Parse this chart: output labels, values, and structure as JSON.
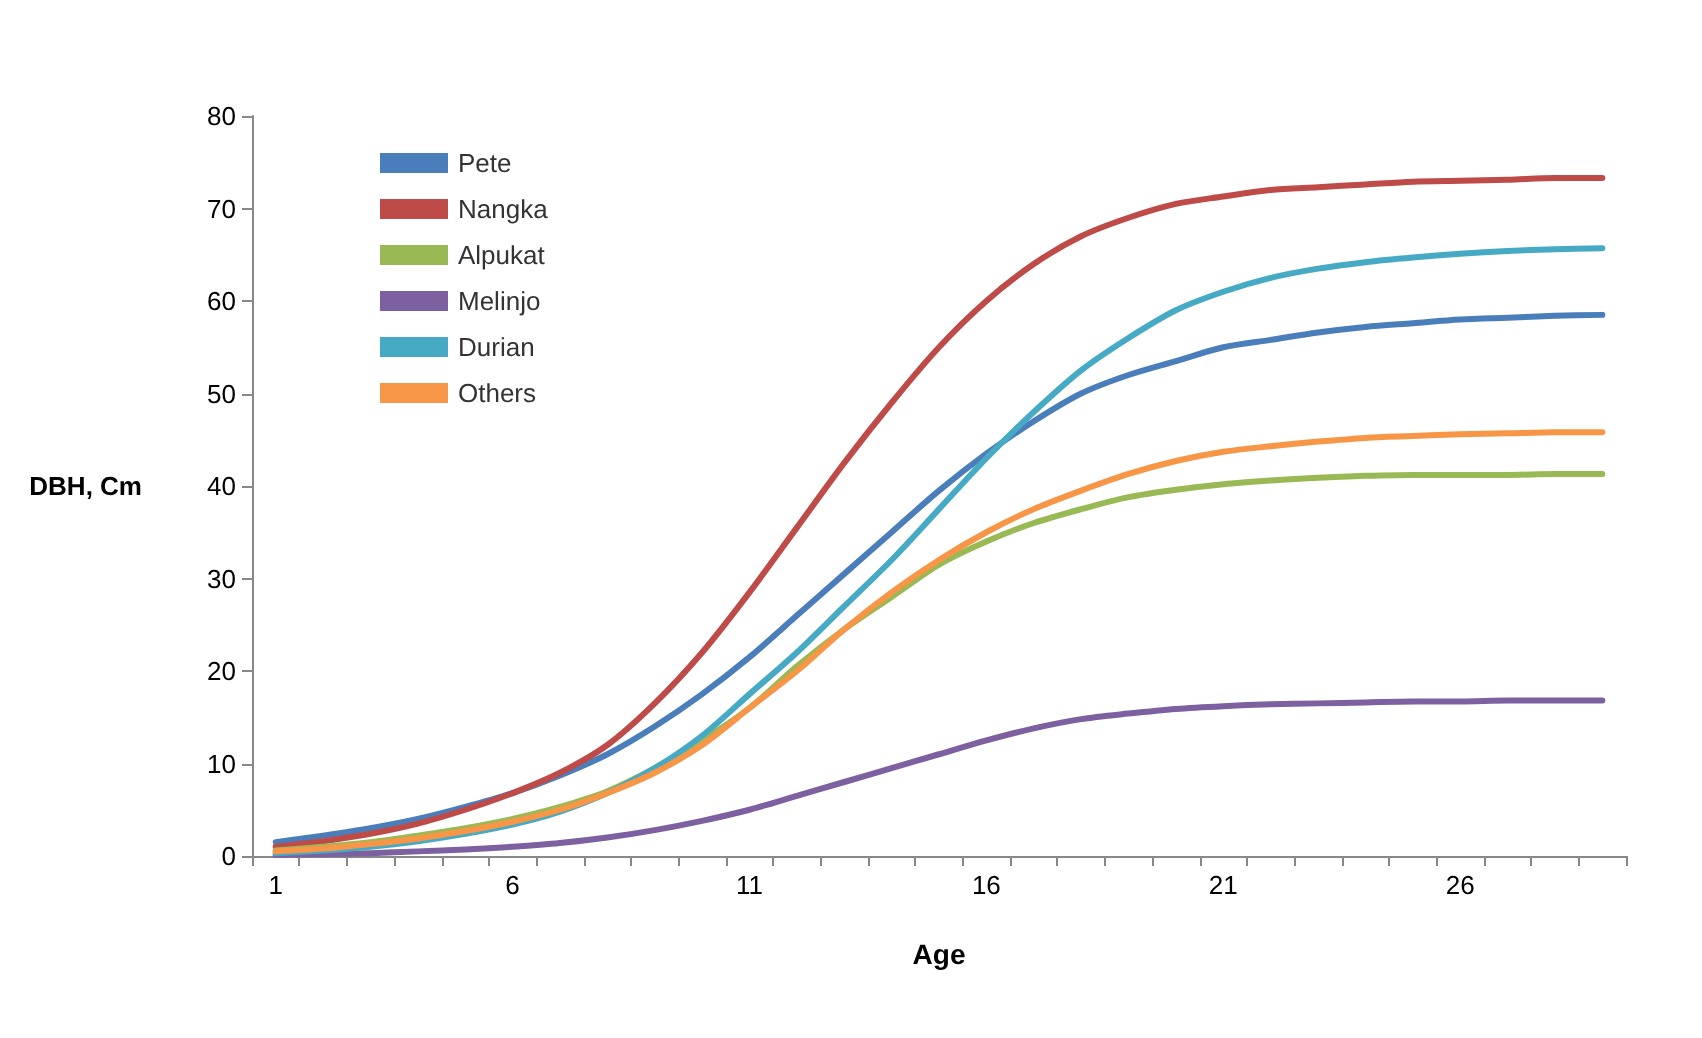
{
  "chart_data": {
    "type": "line",
    "xlabel": "Age",
    "ylabel": "DBH, Cm",
    "categories": [
      "1",
      null,
      null,
      null,
      null,
      "6",
      null,
      null,
      null,
      null,
      "11",
      null,
      null,
      null,
      null,
      "16",
      null,
      null,
      null,
      null,
      "21",
      null,
      null,
      null,
      null,
      "26",
      null,
      null,
      null
    ],
    "series": [
      {
        "name": "Pete",
        "color": "#4a7ebb",
        "values": [
          1.5,
          2.2,
          3,
          4,
          5.3,
          6.8,
          8.7,
          11,
          14,
          17.5,
          21.5,
          26,
          30.5,
          35,
          39.5,
          43.5,
          47,
          50,
          52,
          53.5,
          55,
          55.8,
          56.6,
          57.2,
          57.6,
          58,
          58.2,
          58.4,
          58.5
        ]
      },
      {
        "name": "Nangka",
        "color": "#be4b48",
        "values": [
          1,
          1.6,
          2.4,
          3.5,
          5,
          6.8,
          9,
          12,
          16.5,
          22,
          28.5,
          35.5,
          42.5,
          49,
          55,
          60,
          64,
          67,
          69,
          70.5,
          71.3,
          72,
          72.3,
          72.6,
          72.9,
          73,
          73.1,
          73.3,
          73.3
        ]
      },
      {
        "name": "Alpukat",
        "color": "#98b954",
        "values": [
          0.6,
          1,
          1.5,
          2.2,
          3,
          4,
          5.3,
          7,
          9.5,
          12.5,
          16,
          20.5,
          24.5,
          28,
          31.5,
          34,
          36,
          37.5,
          38.8,
          39.6,
          40.2,
          40.6,
          40.9,
          41.1,
          41.2,
          41.2,
          41.2,
          41.3,
          41.3
        ]
      },
      {
        "name": "Melinjo",
        "color": "#7d60a0",
        "values": [
          0.1,
          0.2,
          0.3,
          0.5,
          0.7,
          1,
          1.4,
          2,
          2.8,
          3.8,
          5,
          6.5,
          8,
          9.5,
          11,
          12.5,
          13.8,
          14.8,
          15.4,
          15.9,
          16.2,
          16.4,
          16.5,
          16.6,
          16.7,
          16.7,
          16.8,
          16.8,
          16.8
        ]
      },
      {
        "name": "Durian",
        "color": "#46aac5",
        "values": [
          0.3,
          0.6,
          1,
          1.6,
          2.4,
          3.4,
          4.8,
          6.8,
          9.5,
          13,
          17.5,
          22,
          27,
          32,
          37.5,
          43,
          48,
          52.5,
          56,
          59,
          61,
          62.5,
          63.5,
          64.2,
          64.7,
          65.1,
          65.4,
          65.6,
          65.7
        ]
      },
      {
        "name": "Others",
        "color": "#f79646",
        "values": [
          0.5,
          0.8,
          1.3,
          1.9,
          2.7,
          3.7,
          5,
          6.8,
          9,
          12,
          16,
          20,
          24.5,
          28.5,
          32,
          35,
          37.5,
          39.5,
          41.3,
          42.7,
          43.7,
          44.3,
          44.8,
          45.2,
          45.4,
          45.6,
          45.7,
          45.8,
          45.8
        ]
      }
    ],
    "ylim": [
      0,
      80
    ],
    "yticks": [
      0,
      10,
      20,
      30,
      40,
      50,
      60,
      70,
      80
    ],
    "grid": false,
    "legend": "top left",
    "marker": "none",
    "line_style": "solid"
  }
}
